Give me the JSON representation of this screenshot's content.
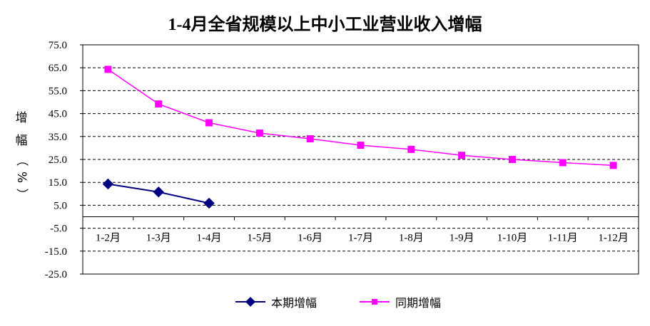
{
  "chart_data": {
    "type": "line",
    "title": "1-4月全省规模以上中小工业营业收入增幅",
    "ylabel": "增幅（%）",
    "xlabel": "",
    "categories": [
      "1-2月",
      "1-3月",
      "1-4月",
      "1-5月",
      "1-6月",
      "1-7月",
      "1-8月",
      "1-9月",
      "1-10月",
      "1-11月",
      "1-12月"
    ],
    "yticks": [
      "75.0",
      "65.0",
      "55.0",
      "45.0",
      "35.0",
      "25.0",
      "15.0",
      "5.0",
      "-5.0",
      "-15.0",
      "-25.0"
    ],
    "ylim": [
      -25,
      75
    ],
    "grid": "horizontal dashed",
    "legend_position": "bottom",
    "series": [
      {
        "name": "本期增幅",
        "color": "#000080",
        "marker": "diamond",
        "values": [
          14.3,
          10.8,
          5.9,
          null,
          null,
          null,
          null,
          null,
          null,
          null,
          null
        ]
      },
      {
        "name": "同期增幅",
        "color": "#FF00FF",
        "marker": "square",
        "values": [
          64.3,
          49.2,
          41.0,
          36.5,
          34.0,
          31.2,
          29.4,
          26.8,
          25.0,
          23.6,
          22.4
        ]
      }
    ]
  }
}
